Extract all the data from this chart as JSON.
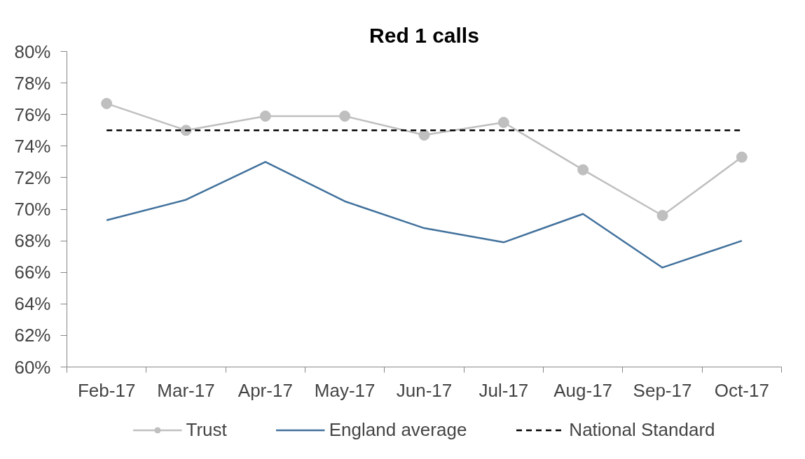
{
  "chart_data": {
    "type": "line",
    "title": "Red 1 calls",
    "categories": [
      "Feb-17",
      "Mar-17",
      "Apr-17",
      "May-17",
      "Jun-17",
      "Jul-17",
      "Aug-17",
      "Sep-17",
      "Oct-17"
    ],
    "series": [
      {
        "name": "Trust",
        "color": "#bfbfbf",
        "marker": "circle",
        "values": [
          76.7,
          75.0,
          75.9,
          75.9,
          74.7,
          75.5,
          72.5,
          69.6,
          73.3
        ]
      },
      {
        "name": "England average",
        "color": "#41719c",
        "marker": "none",
        "values": [
          69.3,
          70.6,
          73.0,
          70.5,
          68.8,
          67.9,
          69.7,
          66.3,
          68.0
        ]
      }
    ],
    "ylim": [
      60,
      80
    ],
    "yticks": [
      {
        "value": 60,
        "label": "60%"
      },
      {
        "value": 62,
        "label": "62%"
      },
      {
        "value": 64,
        "label": "64%"
      },
      {
        "value": 66,
        "label": "66%"
      },
      {
        "value": 68,
        "label": "68%"
      },
      {
        "value": 70,
        "label": "70%"
      },
      {
        "value": 72,
        "label": "72%"
      },
      {
        "value": 74,
        "label": "74%"
      },
      {
        "value": 76,
        "label": "76%"
      },
      {
        "value": 78,
        "label": "78%"
      },
      {
        "value": 80,
        "label": "80%"
      }
    ],
    "ref_lines": [
      {
        "axis": "y",
        "value": 75,
        "label": "National Standard",
        "color": "#000000",
        "line_style": "dashed"
      }
    ],
    "legend": "bottom"
  }
}
